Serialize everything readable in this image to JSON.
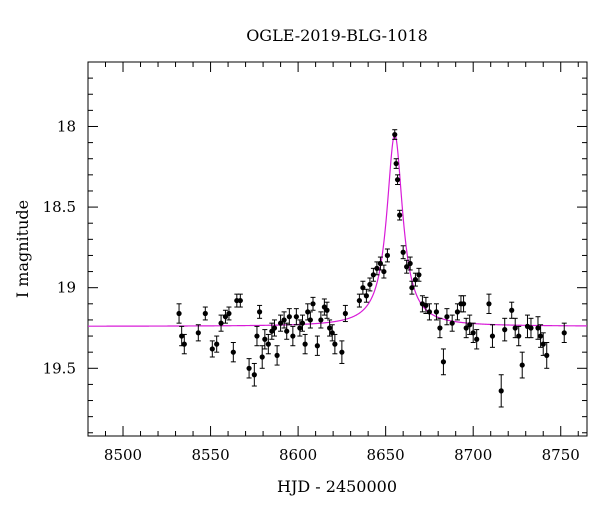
{
  "chart_data": {
    "type": "scatter",
    "title": "OGLE-2019-BLG-1018",
    "xlabel": "HJD - 2450000",
    "ylabel": "I magnitude",
    "xlim": [
      8480,
      8765
    ],
    "ylim": [
      19.92,
      17.6
    ],
    "y_inverted": true,
    "x_ticks": [
      8500,
      8550,
      8600,
      8650,
      8700,
      8750
    ],
    "y_ticks": [
      18,
      18.5,
      19,
      19.5
    ],
    "grid": false,
    "legend": "none",
    "colors": {
      "points": "#000000",
      "model": "#d81bd8",
      "frame": "#000000"
    },
    "model": {
      "baseline": 19.24,
      "peak_mag": 18.05,
      "t0": 8655.2,
      "width": 5.5
    },
    "series": [
      {
        "type": "points_with_errorbars",
        "points": [
          [
            8532,
            19.16,
            0.06
          ],
          [
            8533.5,
            19.3,
            0.06
          ],
          [
            8535,
            19.35,
            0.06
          ],
          [
            8543,
            19.28,
            0.05
          ],
          [
            8547,
            19.16,
            0.04
          ],
          [
            8551,
            19.38,
            0.05
          ],
          [
            8553.5,
            19.35,
            0.05
          ],
          [
            8556,
            19.22,
            0.05
          ],
          [
            8558.5,
            19.18,
            0.04
          ],
          [
            8560.5,
            19.16,
            0.04
          ],
          [
            8563,
            19.4,
            0.06
          ],
          [
            8565,
            19.08,
            0.04
          ],
          [
            8567,
            19.08,
            0.04
          ],
          [
            8572,
            19.5,
            0.06
          ],
          [
            8575,
            19.54,
            0.07
          ],
          [
            8576.5,
            19.3,
            0.06
          ],
          [
            8578,
            19.15,
            0.04
          ],
          [
            8579.5,
            19.43,
            0.07
          ],
          [
            8581,
            19.32,
            0.06
          ],
          [
            8583,
            19.35,
            0.06
          ],
          [
            8585,
            19.27,
            0.05
          ],
          [
            8586.5,
            19.25,
            0.05
          ],
          [
            8588,
            19.42,
            0.06
          ],
          [
            8590,
            19.22,
            0.05
          ],
          [
            8592,
            19.2,
            0.05
          ],
          [
            8593.5,
            19.27,
            0.05
          ],
          [
            8595,
            19.18,
            0.05
          ],
          [
            8597,
            19.3,
            0.06
          ],
          [
            8599,
            19.18,
            0.05
          ],
          [
            8601,
            19.25,
            0.05
          ],
          [
            8602.5,
            19.22,
            0.05
          ],
          [
            8604,
            19.35,
            0.06
          ],
          [
            8605.5,
            19.15,
            0.05
          ],
          [
            8607,
            19.2,
            0.05
          ],
          [
            8608.5,
            19.1,
            0.04
          ],
          [
            8611,
            19.36,
            0.06
          ],
          [
            8613,
            19.2,
            0.05
          ],
          [
            8615,
            19.12,
            0.05
          ],
          [
            8616.5,
            19.14,
            0.05
          ],
          [
            8618,
            19.25,
            0.05
          ],
          [
            8619.5,
            19.28,
            0.05
          ],
          [
            8621,
            19.35,
            0.06
          ],
          [
            8625,
            19.4,
            0.07
          ],
          [
            8627,
            19.16,
            0.05
          ],
          [
            8635,
            19.08,
            0.04
          ],
          [
            8637,
            19.0,
            0.04
          ],
          [
            8639,
            19.05,
            0.04
          ],
          [
            8641,
            18.98,
            0.04
          ],
          [
            8643,
            18.92,
            0.04
          ],
          [
            8645,
            18.88,
            0.04
          ],
          [
            8647,
            18.85,
            0.04
          ],
          [
            8649,
            18.9,
            0.04
          ],
          [
            8651,
            18.8,
            0.04
          ],
          [
            8655.2,
            18.05,
            0.03
          ],
          [
            8656,
            18.23,
            0.03
          ],
          [
            8656.8,
            18.33,
            0.03
          ],
          [
            8658,
            18.55,
            0.03
          ],
          [
            8660,
            18.78,
            0.04
          ],
          [
            8662,
            18.87,
            0.04
          ],
          [
            8664,
            18.85,
            0.04
          ],
          [
            8665,
            19.0,
            0.04
          ],
          [
            8667,
            18.95,
            0.04
          ],
          [
            8669,
            18.92,
            0.04
          ],
          [
            8671,
            19.1,
            0.05
          ],
          [
            8673,
            19.11,
            0.05
          ],
          [
            8675,
            19.15,
            0.05
          ],
          [
            8679,
            19.15,
            0.05
          ],
          [
            8681,
            19.25,
            0.06
          ],
          [
            8683,
            19.46,
            0.08
          ],
          [
            8685,
            19.18,
            0.05
          ],
          [
            8688,
            19.22,
            0.05
          ],
          [
            8691,
            19.15,
            0.05
          ],
          [
            8693,
            19.1,
            0.05
          ],
          [
            8694.5,
            19.1,
            0.05
          ],
          [
            8696,
            19.25,
            0.06
          ],
          [
            8698,
            19.23,
            0.06
          ],
          [
            8700,
            19.28,
            0.06
          ],
          [
            8702,
            19.32,
            0.06
          ],
          [
            8709,
            19.1,
            0.06
          ],
          [
            8711,
            19.3,
            0.07
          ],
          [
            8716,
            19.64,
            0.1
          ],
          [
            8718,
            19.26,
            0.07
          ],
          [
            8722,
            19.14,
            0.05
          ],
          [
            8724,
            19.25,
            0.06
          ],
          [
            8726,
            19.3,
            0.06
          ],
          [
            8728,
            19.48,
            0.08
          ],
          [
            8731,
            19.24,
            0.07
          ],
          [
            8733,
            19.25,
            0.06
          ],
          [
            8737,
            19.25,
            0.07
          ],
          [
            8738.5,
            19.3,
            0.07
          ],
          [
            8740,
            19.35,
            0.07
          ],
          [
            8742,
            19.42,
            0.08
          ],
          [
            8752,
            19.28,
            0.06
          ]
        ]
      }
    ]
  }
}
